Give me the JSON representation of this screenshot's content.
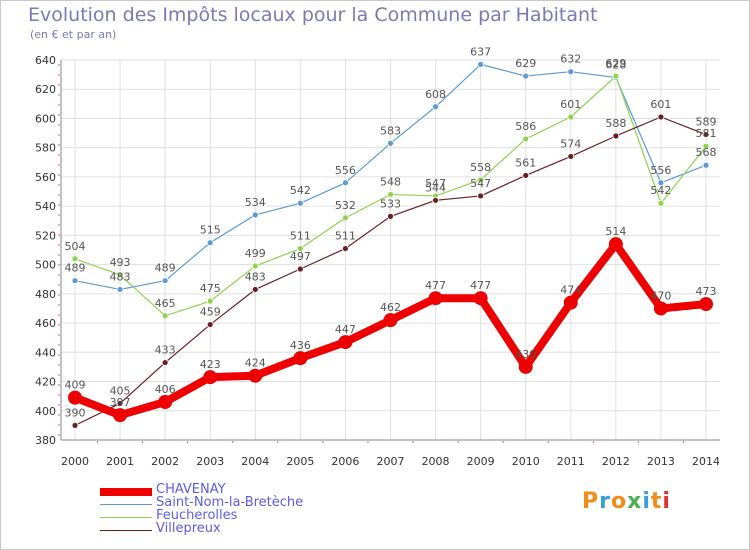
{
  "header": {
    "title": "Evolution des Impôts locaux pour la Commune par Habitant",
    "subtitle": "(en € et par an)"
  },
  "logo": {
    "text": "Proxiti",
    "colors": [
      "#f28c1b",
      "#3aa0dc",
      "#f28c1b",
      "#4caf50",
      "#3aa0dc",
      "#f28c1b",
      "#e03030"
    ]
  },
  "chart_data": {
    "type": "line",
    "categories": [
      "2000",
      "2001",
      "2002",
      "2003",
      "2004",
      "2005",
      "2006",
      "2007",
      "2008",
      "2009",
      "2010",
      "2011",
      "2012",
      "2013",
      "2014"
    ],
    "ylim": [
      380,
      640
    ],
    "yticks": [
      380,
      400,
      420,
      440,
      460,
      480,
      500,
      520,
      540,
      560,
      580,
      600,
      620,
      640
    ],
    "grid": true,
    "legend_position": "bottom-left",
    "series": [
      {
        "name": "CHAVENAY",
        "color": "#ee0000",
        "values": [
          409,
          397,
          406,
          423,
          424,
          436,
          447,
          462,
          477,
          477,
          430,
          474,
          514,
          470,
          473
        ]
      },
      {
        "name": "Saint-Nom-la-Bretèche",
        "color": "#5b9bd5",
        "values": [
          489,
          483,
          489,
          515,
          534,
          542,
          556,
          583,
          608,
          637,
          629,
          632,
          628,
          556,
          568
        ]
      },
      {
        "name": "Feucherolles",
        "color": "#8ed24e",
        "values": [
          504,
          493,
          465,
          475,
          499,
          511,
          532,
          548,
          547,
          558,
          586,
          601,
          629,
          542,
          581
        ]
      },
      {
        "name": "Villepreux",
        "color": "#6b1e1e",
        "values": [
          390,
          405,
          433,
          459,
          483,
          497,
          511,
          533,
          544,
          547,
          561,
          574,
          588,
          601,
          589
        ]
      }
    ]
  }
}
